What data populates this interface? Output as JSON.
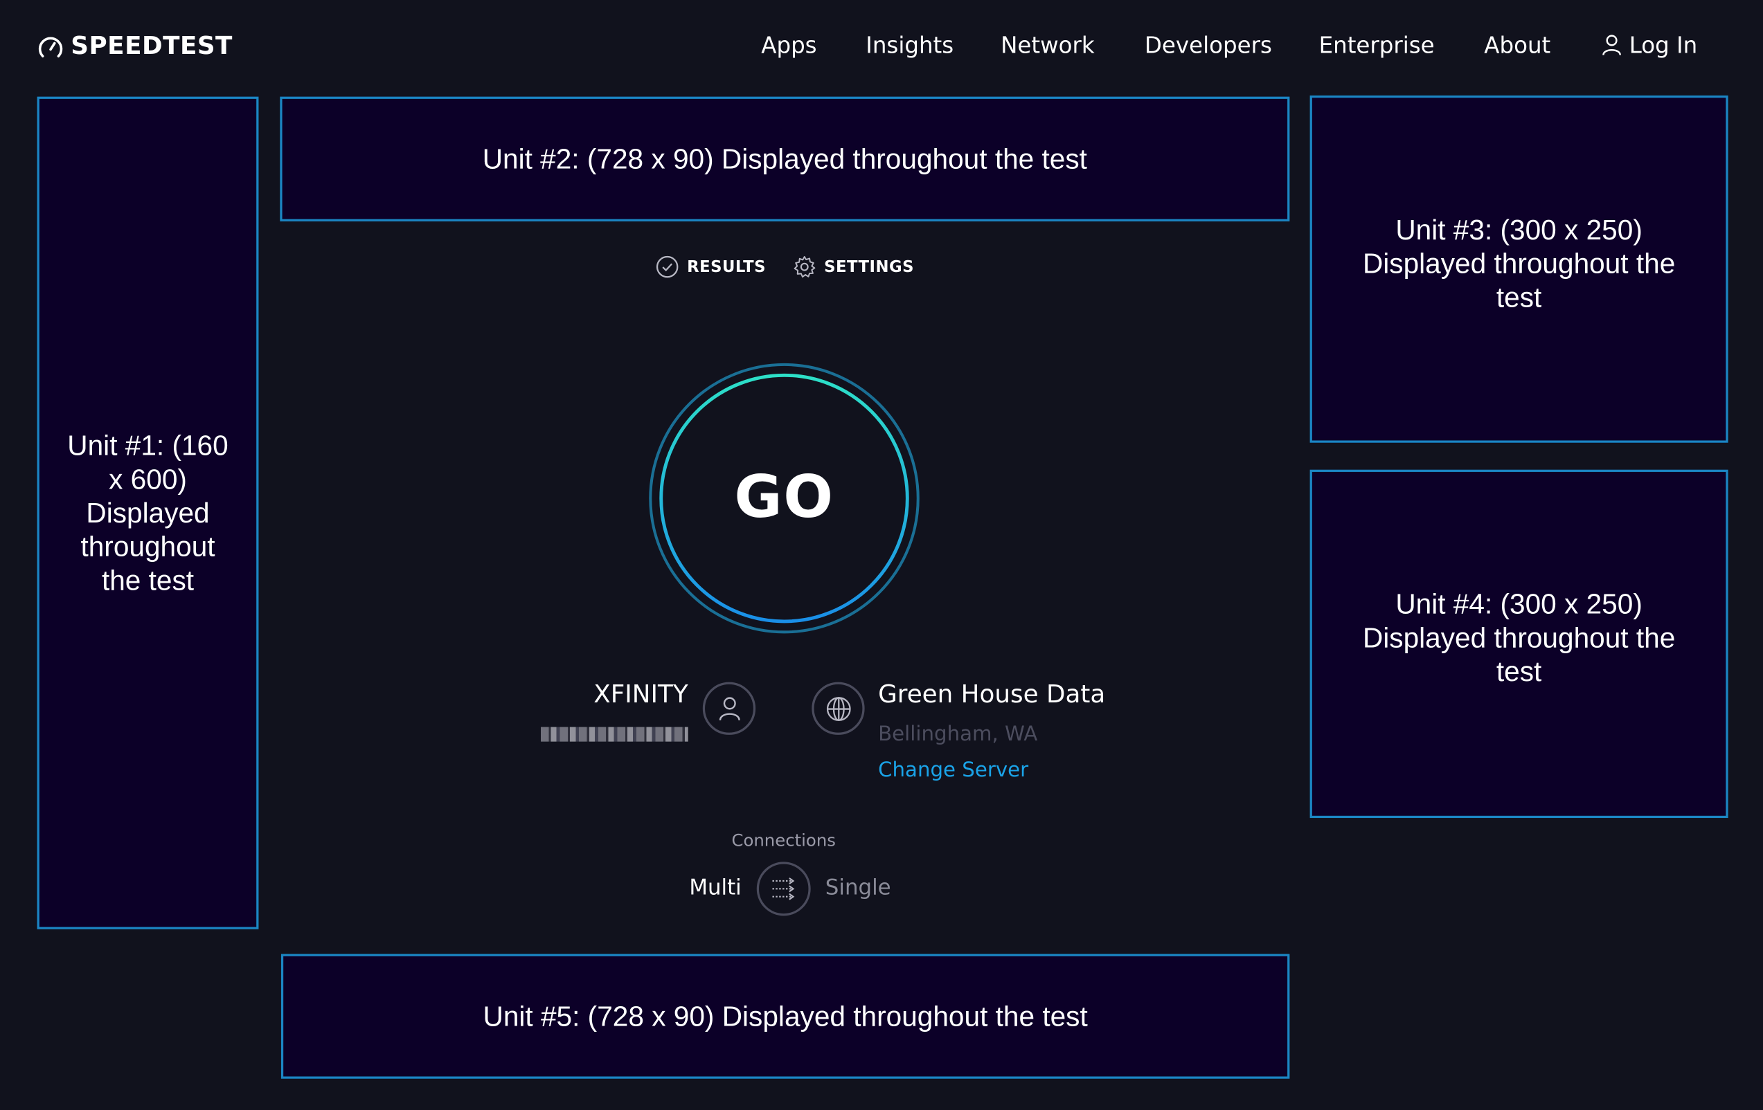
{
  "header": {
    "logo_text": "SPEEDTEST",
    "nav": [
      {
        "label": "Apps"
      },
      {
        "label": "Insights"
      },
      {
        "label": "Network"
      },
      {
        "label": "Developers"
      },
      {
        "label": "Enterprise"
      },
      {
        "label": "About"
      }
    ],
    "login_label": "Log In"
  },
  "ads": {
    "unit1": "Unit #1: (160 x 600) Displayed throughout the test",
    "unit2": "Unit #2: (728 x 90) Displayed throughout the test",
    "unit3": "Unit #3: (300 x 250) Displayed throughout the test",
    "unit4": "Unit #4: (300 x 250) Displayed throughout the test",
    "unit5": "Unit #5: (728 x 90) Displayed throughout the test"
  },
  "tabs": {
    "results": "RESULTS",
    "settings": "SETTINGS"
  },
  "go_label": "GO",
  "isp": {
    "name": "XFINITY"
  },
  "server": {
    "name": "Green House Data",
    "location": "Bellingham, WA",
    "change_label": "Change Server"
  },
  "connections": {
    "label": "Connections",
    "multi": "Multi",
    "single": "Single"
  },
  "colors": {
    "background": "#11121d",
    "ad_fill": "#0c0028",
    "ad_border": "#1b86c4",
    "link": "#1aa3e8",
    "go_gradient": [
      "#2de0c8",
      "#1a8fe8"
    ]
  }
}
